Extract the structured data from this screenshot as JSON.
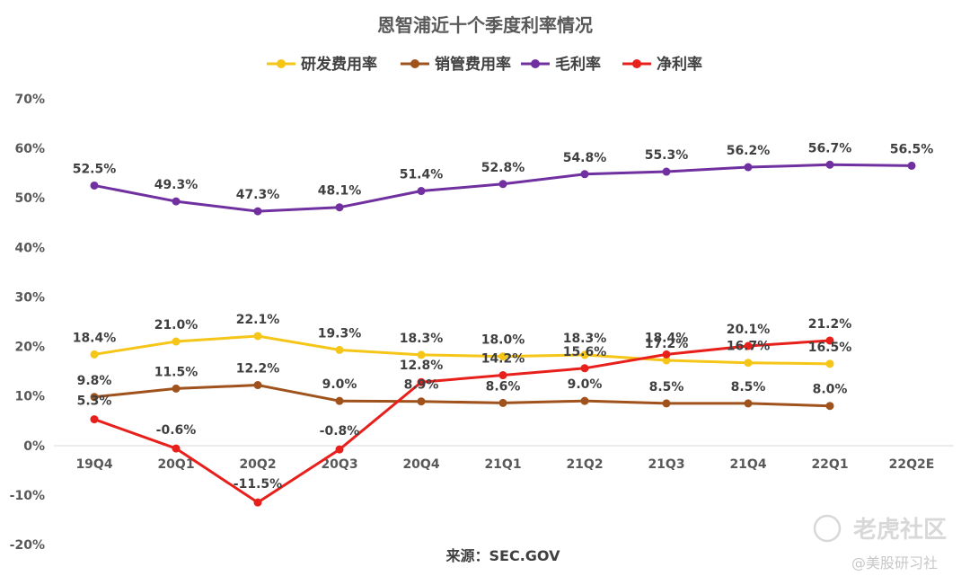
{
  "chart_data": {
    "type": "line",
    "title": "恩智浦近十个季度利率情况",
    "categories": [
      "19Q4",
      "20Q1",
      "20Q2",
      "20Q3",
      "20Q4",
      "21Q1",
      "21Q2",
      "21Q3",
      "21Q4",
      "22Q1",
      "22Q2E"
    ],
    "ytick_labels": [
      "70%",
      "60%",
      "50%",
      "40%",
      "30%",
      "20%",
      "10%",
      "0%",
      "-10%",
      "-20%"
    ],
    "ylim": [
      -20,
      70
    ],
    "grid": false,
    "legend_position": "top",
    "series": [
      {
        "name": "研发费用率",
        "color": "#F5C518",
        "values": [
          18.4,
          21.0,
          22.1,
          19.3,
          18.3,
          18.0,
          18.3,
          17.2,
          16.7,
          16.5,
          null
        ],
        "labels": [
          "18.4%",
          "21.0%",
          "22.1%",
          "19.3%",
          "18.3%",
          "18.0%",
          "18.3%",
          "17.2%",
          "16.7%",
          "16.5%",
          null
        ]
      },
      {
        "name": "销管费用率",
        "color": "#A0521C",
        "values": [
          9.8,
          11.5,
          12.2,
          9.0,
          8.9,
          8.6,
          9.0,
          8.5,
          8.5,
          8.0,
          null
        ],
        "labels": [
          "9.8%",
          "11.5%",
          "12.2%",
          "9.0%",
          "8.9%",
          "8.6%",
          "9.0%",
          "8.5%",
          "8.5%",
          "8.0%",
          null
        ]
      },
      {
        "name": "毛利率",
        "color": "#7030A0",
        "values": [
          52.5,
          49.3,
          47.3,
          48.1,
          51.4,
          52.8,
          54.8,
          55.3,
          56.2,
          56.7,
          56.5
        ],
        "labels": [
          "52.5%",
          "49.3%",
          "47.3%",
          "48.1%",
          "51.4%",
          "52.8%",
          "54.8%",
          "55.3%",
          "56.2%",
          "56.7%",
          "56.5%"
        ]
      },
      {
        "name": "净利率",
        "color": "#E8201C",
        "values": [
          5.3,
          -0.6,
          -11.5,
          -0.8,
          12.8,
          14.2,
          15.6,
          18.4,
          20.1,
          21.2,
          null
        ],
        "labels": [
          "5.3%",
          "-0.6%",
          "-11.5%",
          "-0.8%",
          "12.8%",
          "14.2%",
          "15.6%",
          "18.4%",
          "20.1%",
          "21.2%",
          null
        ]
      }
    ],
    "source": "来源：SEC.GOV"
  },
  "watermark": {
    "logo_text": "老虎社区",
    "sub_text": "@美股研习社"
  }
}
